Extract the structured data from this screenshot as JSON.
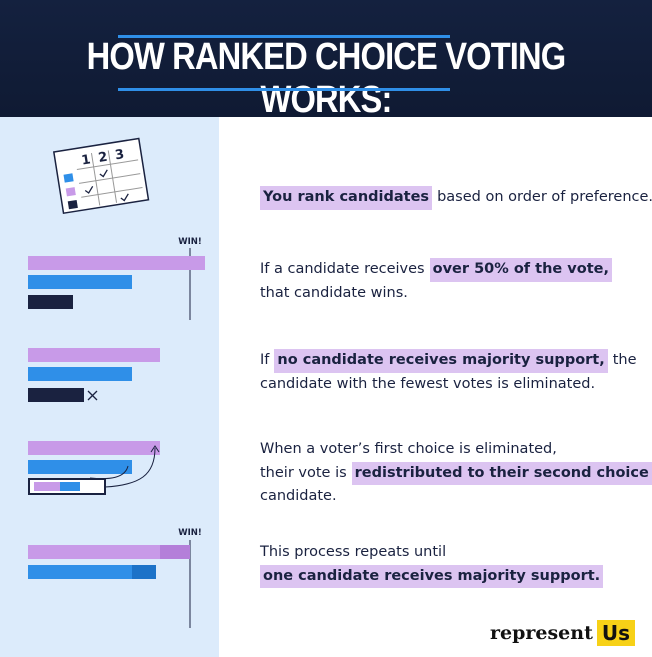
{
  "header": {
    "title": "HOW RANKED CHOICE VOTING WORKS:"
  },
  "ballot": {
    "columns": [
      "1",
      "2",
      "3"
    ]
  },
  "win_labels": [
    "WIN!",
    "WIN!"
  ],
  "steps": [
    {
      "lines": [
        [
          {
            "text": "You rank candidates",
            "highlight": true
          },
          {
            "text": "based on order of preference.",
            "highlight": false
          }
        ]
      ]
    },
    {
      "lines": [
        [
          {
            "text": "If a candidate receives",
            "highlight": false
          },
          {
            "text": "over 50% of the vote,",
            "highlight": true
          }
        ],
        [
          {
            "text": "that candidate wins.",
            "highlight": false
          }
        ]
      ]
    },
    {
      "lines": [
        [
          {
            "text": "If",
            "highlight": false
          },
          {
            "text": "no candidate receives majority support,",
            "highlight": true
          },
          {
            "text": "the",
            "highlight": false
          }
        ],
        [
          {
            "text": "candidate with the fewest votes is eliminated.",
            "highlight": false
          }
        ]
      ]
    },
    {
      "lines": [
        [
          {
            "text": "When a voter’s first choice is eliminated,",
            "highlight": false
          }
        ],
        [
          {
            "text": "their vote is",
            "highlight": false
          },
          {
            "text": "redistributed to their second choice",
            "highlight": true
          }
        ],
        [
          {
            "text": "candidate.",
            "highlight": false
          }
        ]
      ]
    },
    {
      "lines": [
        [
          {
            "text": "This process repeats until",
            "highlight": false
          }
        ],
        [
          {
            "text": "one candidate receives majority support.",
            "highlight": true
          }
        ]
      ]
    }
  ],
  "logo": {
    "word": "represent",
    "badge": "Us"
  }
}
